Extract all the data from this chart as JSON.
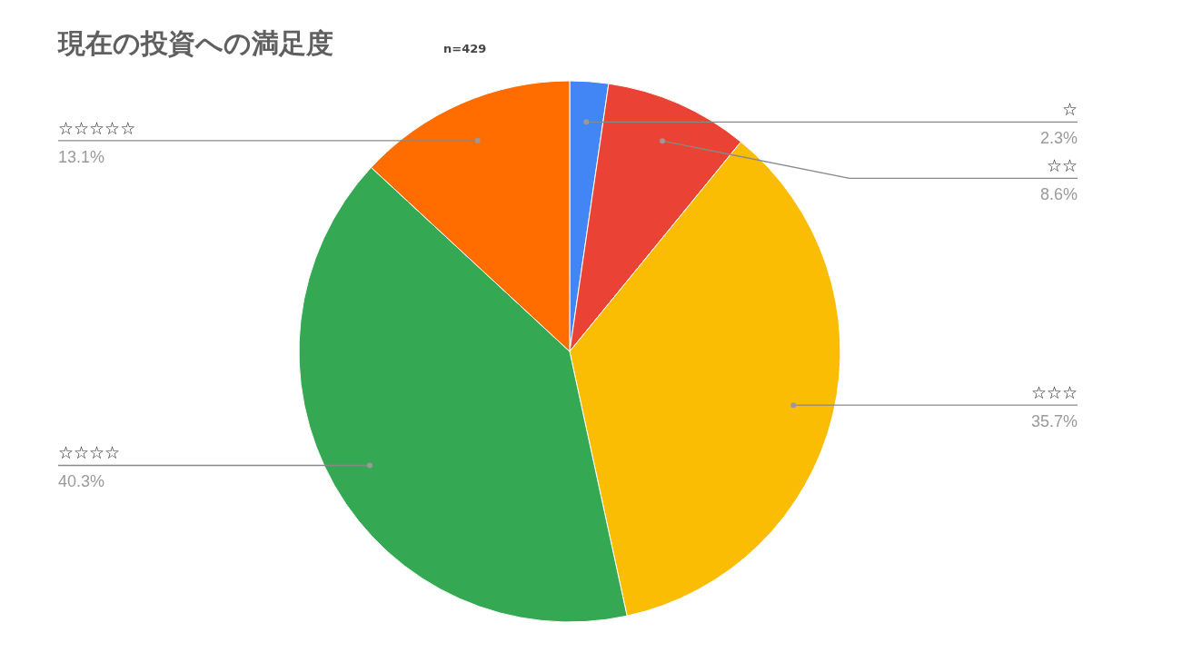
{
  "chart_data": {
    "type": "pie",
    "title": "現在の投資への満足度",
    "subtitle": "n=429",
    "categories": [
      "☆",
      "☆☆",
      "☆☆☆",
      "☆☆☆☆",
      "☆☆☆☆☆"
    ],
    "values": [
      2.3,
      8.6,
      35.7,
      40.3,
      13.1
    ],
    "colors": [
      "#4285f4",
      "#ea4335",
      "#fbbc04",
      "#34a853",
      "#ff6d01"
    ],
    "value_labels": [
      "2.3%",
      "8.6%",
      "35.7%",
      "40.3%",
      "13.1%"
    ]
  }
}
